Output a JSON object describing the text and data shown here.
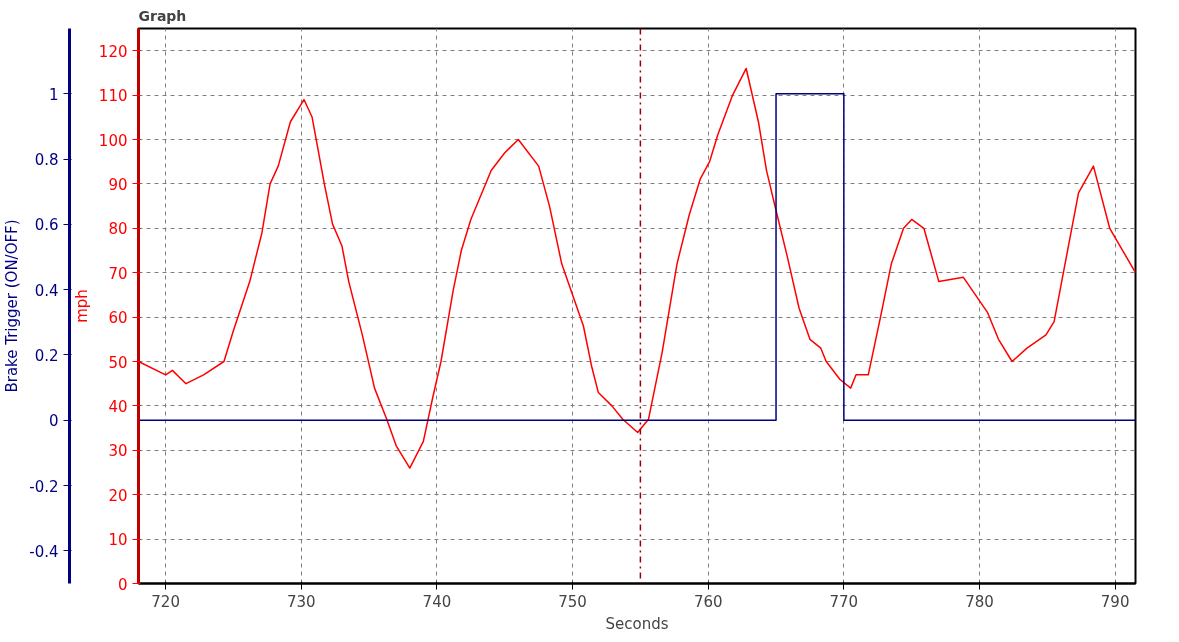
{
  "chart_data": {
    "type": "line",
    "title": "Graph",
    "xlabel": "Seconds",
    "ylabel": "mph",
    "y2label": "Brake Trigger (ON/OFF)",
    "xlim": [
      718,
      791.5
    ],
    "xticks": [
      720,
      730,
      740,
      750,
      760,
      770,
      780,
      790
    ],
    "ylim": [
      0,
      125
    ],
    "yticks": [
      0,
      10,
      20,
      30,
      40,
      50,
      60,
      70,
      80,
      90,
      100,
      110,
      120
    ],
    "y2lim": [
      -0.5,
      1.2
    ],
    "y2ticks": [
      -0.4,
      -0.2,
      0,
      0.2,
      0.4,
      0.6,
      0.8,
      1
    ],
    "grid": true,
    "line_style": "solid",
    "series": [
      {
        "axis": "y",
        "color": "#ff0000",
        "x": [
          718,
          720,
          720.5,
          721.5,
          722.8,
          724.3,
          725,
          726.2,
          727.1,
          727.7,
          728.3,
          729.2,
          730.2,
          730.8,
          731.7,
          732.3,
          733,
          733.5,
          734.5,
          735.4,
          736.3,
          737,
          738,
          739,
          739.7,
          740.3,
          741.2,
          741.8,
          742.5,
          744,
          745,
          746,
          747.5,
          748.3,
          749.2,
          750.8,
          751.4,
          751.9,
          752.9,
          753.7,
          754.8,
          755.6,
          756.6,
          757.7,
          758.6,
          759.4,
          760.1,
          760.7,
          761.8,
          762.8,
          763.7,
          764.3,
          765,
          765.8,
          766.7,
          767.5,
          768.3,
          768.7,
          769.7,
          770.5,
          770.9,
          771.8,
          772.7,
          773.5,
          774.4,
          775,
          775.9,
          777,
          778.8,
          779.7,
          780.6,
          781.4,
          782.4,
          783.5,
          784.9,
          785.5,
          787.3,
          788.4,
          789.6,
          791.5
        ],
        "values": [
          50,
          47,
          48,
          45,
          47,
          50,
          57,
          68,
          79,
          90,
          94,
          104,
          109,
          105,
          90,
          81,
          76,
          68,
          56,
          44,
          37,
          31,
          26,
          32,
          42,
          50,
          66,
          75,
          82,
          93,
          97,
          100,
          94,
          85,
          72,
          58,
          49,
          43,
          40,
          37,
          34,
          37,
          52,
          72,
          83,
          91,
          95,
          101,
          110,
          116,
          104,
          93,
          84,
          74,
          62,
          55,
          53,
          50,
          46,
          44,
          47,
          47,
          60,
          72,
          80,
          82,
          80,
          68,
          69,
          65,
          61,
          55,
          50,
          53,
          56,
          59,
          88,
          94,
          80,
          70
        ]
      },
      {
        "type": "step",
        "axis": "y2",
        "color": "#000080",
        "x": [
          718,
          765,
          770,
          791.5
        ],
        "values": [
          0,
          1,
          0,
          0
        ]
      }
    ],
    "ref_lines": [
      {
        "axis": "x",
        "value": 755,
        "color": "#990000",
        "line_style": "dashdot"
      }
    ]
  }
}
